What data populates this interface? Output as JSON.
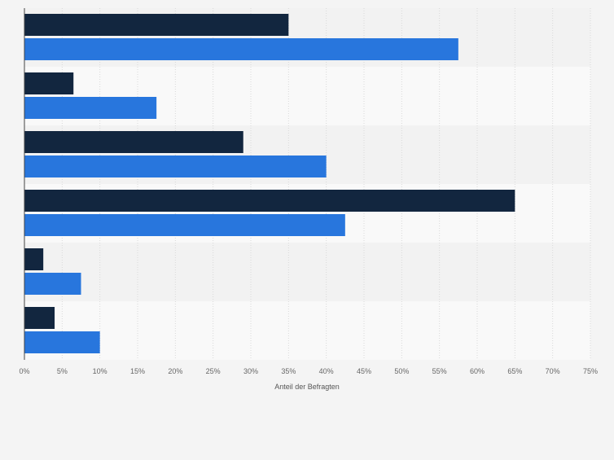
{
  "chart_data": {
    "type": "bar",
    "orientation": "horizontal",
    "categories": [
      "",
      "",
      "",
      "",
      "",
      ""
    ],
    "series": [
      {
        "values": [
          35,
          6.5,
          29,
          65,
          2.5,
          4
        ],
        "color": "#12263f"
      },
      {
        "values": [
          57.5,
          17.5,
          40,
          42.5,
          7.5,
          10
        ],
        "color": "#2876dd"
      }
    ],
    "xlabel": "Anteil der Befragten",
    "xlim": [
      0,
      75
    ],
    "ticks": [
      "0%",
      "5%",
      "10%",
      "15%",
      "20%",
      "25%",
      "30%",
      "35%",
      "40%",
      "45%",
      "50%",
      "55%",
      "60%",
      "65%",
      "70%",
      "75%"
    ],
    "grid": true,
    "band_colors": [
      "#f2f2f2",
      "#f9f9f9"
    ]
  }
}
